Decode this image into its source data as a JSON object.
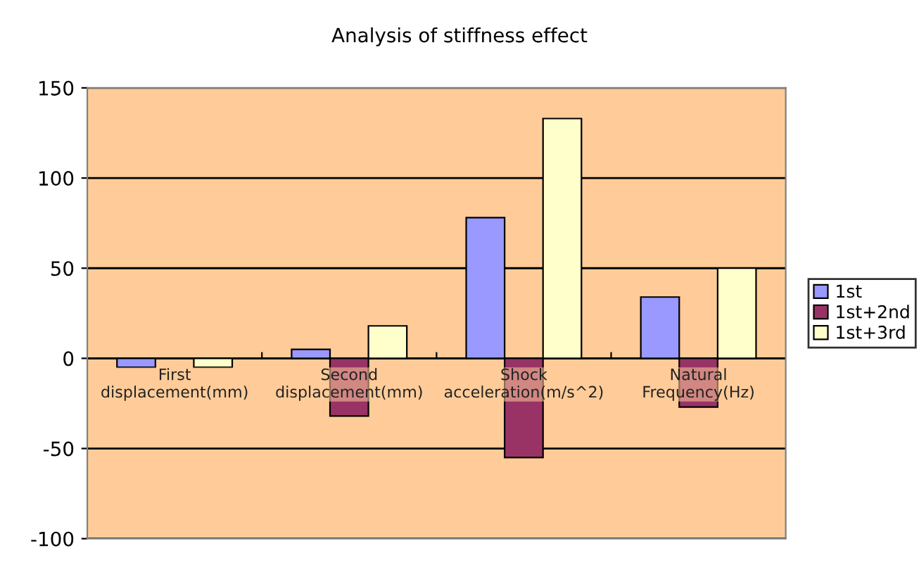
{
  "chart_data": {
    "type": "bar",
    "title": "Analysis of stiffness effect",
    "categories": [
      "First\ndisplacement(mm)",
      "Second\ndisplacement(mm)",
      "Shock\nacceleration(m/s^2)",
      "Natural\nFrequency(Hz)"
    ],
    "series": [
      {
        "name": "1st",
        "color": "#9999ff",
        "values": [
          -5,
          5,
          78,
          34
        ]
      },
      {
        "name": "1st+2nd",
        "color": "#993366",
        "values": [
          0,
          -32,
          -55,
          -27
        ]
      },
      {
        "name": "1st+3rd",
        "color": "#ffffcc",
        "values": [
          -5,
          18,
          133,
          50
        ]
      }
    ],
    "ylim": [
      -100,
      150
    ],
    "yticks": [
      -100,
      -50,
      0,
      50,
      100,
      150
    ],
    "grid": "y",
    "legend": "right"
  }
}
